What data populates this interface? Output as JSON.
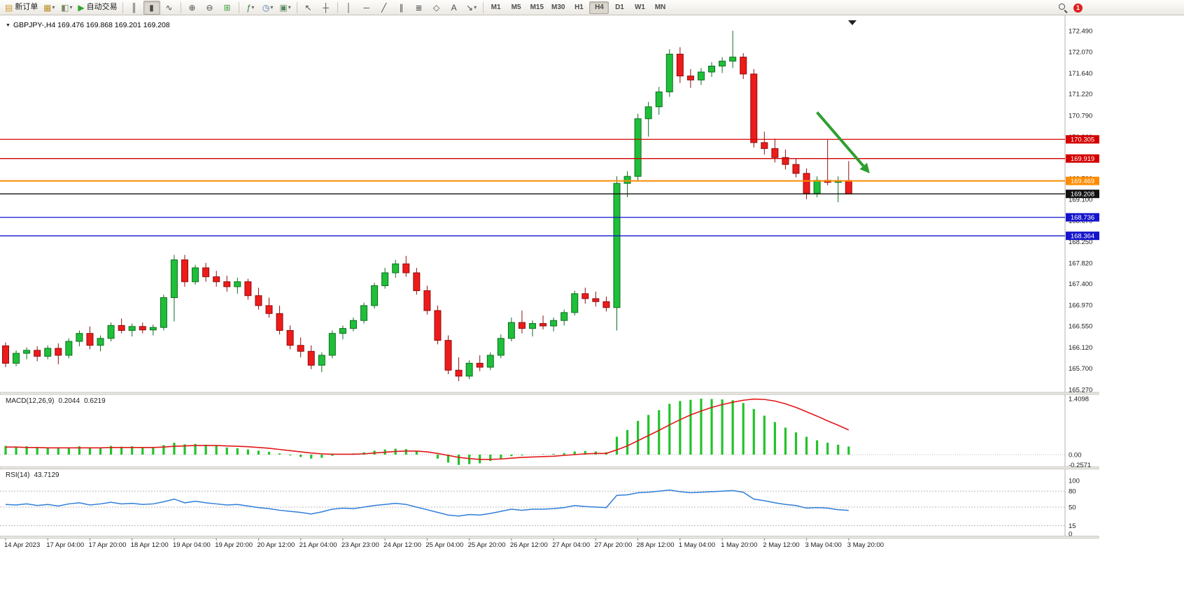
{
  "toolbar": {
    "new_order_label": "新订单",
    "autotrading_label": "自动交易",
    "icons": {
      "new_order": "▤",
      "chart_window": "▦",
      "profiles": "◧",
      "autotrading_play": "▶",
      "bar_chart": "║",
      "candlesticks": "▮",
      "line_chart": "∿",
      "zoom_in": "⊕",
      "zoom_out": "⊖",
      "tile_windows": "⊞",
      "indicators": "ƒ",
      "periods": "◷",
      "templates": "▣",
      "cursor": "↖",
      "crosshair": "┼",
      "vertical_line": "│",
      "horizontal_line": "─",
      "trendline": "╱",
      "channel": "∥",
      "fibonacci": "≣",
      "shapes": "◇",
      "text_tool": "A",
      "arrows_tool": "↘",
      "dropdown": "▾"
    },
    "timeframes": [
      "M1",
      "M5",
      "M15",
      "M30",
      "H1",
      "H4",
      "D1",
      "W1",
      "MN"
    ],
    "active_timeframe": "H4",
    "notification_count": "1"
  },
  "chart": {
    "symbol_info": "GBPJPY-,H4 169.476 169.868 169.201 169.208",
    "menu_icon": "▼",
    "price_axis": [
      "172.490",
      "172.070",
      "171.640",
      "171.220",
      "170.790",
      "170.360",
      "169.940",
      "169.520",
      "169.100",
      "168.670",
      "168.250",
      "167.820",
      "167.400",
      "166.970",
      "166.550",
      "166.120",
      "165.700",
      "165.270"
    ],
    "levels": [
      {
        "price": 170.305,
        "label": "170.305",
        "color": "#d40000",
        "type": "resistance"
      },
      {
        "price": 169.919,
        "label": "169.919",
        "color": "#d40000",
        "type": "resistance"
      },
      {
        "price": 169.469,
        "label": "169.469",
        "color": "#ff8c00",
        "type": "pivot"
      },
      {
        "price": 169.208,
        "label": "169.208",
        "color": "#111111",
        "type": "bid"
      },
      {
        "price": 168.736,
        "label": "168.736",
        "color": "#1414cc",
        "type": "support"
      },
      {
        "price": 168.364,
        "label": "168.364",
        "color": "#1414cc",
        "type": "support"
      }
    ],
    "colors": {
      "up": "#1fbf3a",
      "up_edge": "#0e6e1e",
      "down": "#ee1b1b",
      "down_edge": "#8f0d0d"
    },
    "candles": [
      [
        166.15,
        166.22,
        165.72,
        165.8
      ],
      [
        165.8,
        166.06,
        165.74,
        166.0
      ],
      [
        166.0,
        166.12,
        165.88,
        166.06
      ],
      [
        166.06,
        166.14,
        165.84,
        165.94
      ],
      [
        165.94,
        166.16,
        165.88,
        166.1
      ],
      [
        166.1,
        166.2,
        165.78,
        165.96
      ],
      [
        165.96,
        166.3,
        165.9,
        166.24
      ],
      [
        166.24,
        166.46,
        166.14,
        166.4
      ],
      [
        166.4,
        166.54,
        166.08,
        166.16
      ],
      [
        166.16,
        166.36,
        166.04,
        166.3
      ],
      [
        166.3,
        166.62,
        166.24,
        166.56
      ],
      [
        166.56,
        166.7,
        166.4,
        166.46
      ],
      [
        166.46,
        166.6,
        166.34,
        166.54
      ],
      [
        166.54,
        166.62,
        166.4,
        166.47
      ],
      [
        166.47,
        166.58,
        166.36,
        166.52
      ],
      [
        166.52,
        167.18,
        166.46,
        167.12
      ],
      [
        167.12,
        167.98,
        166.64,
        167.88
      ],
      [
        167.88,
        167.98,
        167.34,
        167.44
      ],
      [
        167.44,
        167.78,
        167.38,
        167.72
      ],
      [
        167.72,
        167.82,
        167.44,
        167.54
      ],
      [
        167.54,
        167.66,
        167.34,
        167.44
      ],
      [
        167.44,
        167.56,
        167.24,
        167.34
      ],
      [
        167.34,
        167.52,
        167.2,
        167.44
      ],
      [
        167.44,
        167.5,
        167.08,
        167.16
      ],
      [
        167.16,
        167.32,
        166.88,
        166.96
      ],
      [
        166.96,
        167.12,
        166.72,
        166.8
      ],
      [
        166.8,
        166.96,
        166.38,
        166.46
      ],
      [
        166.46,
        166.56,
        166.08,
        166.16
      ],
      [
        166.16,
        166.32,
        165.92,
        166.04
      ],
      [
        166.04,
        166.16,
        165.68,
        165.76
      ],
      [
        165.76,
        166.02,
        165.62,
        165.96
      ],
      [
        165.96,
        166.46,
        165.9,
        166.4
      ],
      [
        166.4,
        166.56,
        166.28,
        166.5
      ],
      [
        166.5,
        166.72,
        166.44,
        166.66
      ],
      [
        166.66,
        167.02,
        166.6,
        166.96
      ],
      [
        166.96,
        167.42,
        166.9,
        167.36
      ],
      [
        167.36,
        167.72,
        167.3,
        167.62
      ],
      [
        167.62,
        167.88,
        167.52,
        167.8
      ],
      [
        167.8,
        167.96,
        167.54,
        167.62
      ],
      [
        167.62,
        167.72,
        167.18,
        167.26
      ],
      [
        167.26,
        167.36,
        166.78,
        166.86
      ],
      [
        166.86,
        166.96,
        166.18,
        166.26
      ],
      [
        166.26,
        166.36,
        165.58,
        165.66
      ],
      [
        165.66,
        165.92,
        165.44,
        165.54
      ],
      [
        165.54,
        165.86,
        165.48,
        165.8
      ],
      [
        165.8,
        165.96,
        165.64,
        165.72
      ],
      [
        165.72,
        166.02,
        165.66,
        165.96
      ],
      [
        165.96,
        166.38,
        165.9,
        166.3
      ],
      [
        166.3,
        166.72,
        166.24,
        166.62
      ],
      [
        166.62,
        166.86,
        166.4,
        166.5
      ],
      [
        166.5,
        166.66,
        166.34,
        166.6
      ],
      [
        166.6,
        166.76,
        166.48,
        166.55
      ],
      [
        166.55,
        166.72,
        166.44,
        166.66
      ],
      [
        166.66,
        166.88,
        166.56,
        166.82
      ],
      [
        166.82,
        167.26,
        166.76,
        167.2
      ],
      [
        167.2,
        167.32,
        167.0,
        167.1
      ],
      [
        167.1,
        167.24,
        166.94,
        167.04
      ],
      [
        167.04,
        167.14,
        166.84,
        166.92
      ],
      [
        166.92,
        169.56,
        166.46,
        169.42
      ],
      [
        169.42,
        169.66,
        169.14,
        169.56
      ],
      [
        169.56,
        170.82,
        169.46,
        170.72
      ],
      [
        170.72,
        171.06,
        170.36,
        170.96
      ],
      [
        170.96,
        171.36,
        170.8,
        171.26
      ],
      [
        171.26,
        172.12,
        171.16,
        172.02
      ],
      [
        172.02,
        172.16,
        171.44,
        171.58
      ],
      [
        171.58,
        171.72,
        171.34,
        171.5
      ],
      [
        171.5,
        171.74,
        171.4,
        171.66
      ],
      [
        171.66,
        171.86,
        171.56,
        171.78
      ],
      [
        171.78,
        171.96,
        171.64,
        171.88
      ],
      [
        171.88,
        172.49,
        171.74,
        171.96
      ],
      [
        171.96,
        172.04,
        171.52,
        171.62
      ],
      [
        171.62,
        171.72,
        170.14,
        170.24
      ],
      [
        170.24,
        170.46,
        170.0,
        170.12
      ],
      [
        170.12,
        170.32,
        169.84,
        169.94
      ],
      [
        169.94,
        170.1,
        169.7,
        169.8
      ],
      [
        169.8,
        169.92,
        169.54,
        169.62
      ],
      [
        169.62,
        169.72,
        169.1,
        169.22
      ],
      [
        169.22,
        169.56,
        169.14,
        169.48
      ],
      [
        169.48,
        170.3,
        169.38,
        169.44
      ],
      [
        169.44,
        169.56,
        169.04,
        169.476
      ],
      [
        169.476,
        169.868,
        169.201,
        169.208
      ]
    ],
    "time_labels": [
      "14 Apr 2023",
      "17 Apr 04:00",
      "17 Apr 20:00",
      "18 Apr 12:00",
      "19 Apr 04:00",
      "19 Apr 20:00",
      "20 Apr 12:00",
      "21 Apr 04:00",
      "23 Apr 23:00",
      "24 Apr 12:00",
      "25 Apr 04:00",
      "25 Apr 20:00",
      "26 Apr 12:00",
      "27 Apr 04:00",
      "27 Apr 20:00",
      "28 Apr 12:00",
      "1 May 04:00",
      "1 May 20:00",
      "2 May 12:00",
      "3 May 04:00",
      "3 May 20:00"
    ],
    "label_step": 4,
    "arrow": {
      "from_index": 77,
      "from_price": 170.85,
      "to_index": 82,
      "to_price": 169.62,
      "color": "#2e9e2e"
    }
  },
  "macd": {
    "title": "MACD(12,26,9)",
    "values": [
      "0.2044",
      "0.6219"
    ],
    "axis": [
      {
        "v": 1.4098,
        "t": "1.4098"
      },
      {
        "v": 0,
        "t": "0.00"
      },
      {
        "v": -0.2571,
        "t": "-0.2571"
      }
    ],
    "colors": {
      "histogram": "#22c32a",
      "signal": "#e01818"
    },
    "histogram": [
      0.22,
      0.2,
      0.21,
      0.19,
      0.18,
      0.16,
      0.18,
      0.21,
      0.17,
      0.18,
      0.22,
      0.2,
      0.21,
      0.19,
      0.18,
      0.24,
      0.3,
      0.26,
      0.27,
      0.25,
      0.22,
      0.18,
      0.16,
      0.13,
      0.1,
      0.07,
      0.03,
      -0.02,
      -0.06,
      -0.1,
      -0.08,
      -0.03,
      0.01,
      0.03,
      0.06,
      0.1,
      0.13,
      0.15,
      0.14,
      0.08,
      0.0,
      -0.1,
      -0.2,
      -0.26,
      -0.24,
      -0.22,
      -0.16,
      -0.1,
      -0.04,
      -0.02,
      0.0,
      0.01,
      0.02,
      0.04,
      0.08,
      0.09,
      0.08,
      0.06,
      0.45,
      0.62,
      0.85,
      1.0,
      1.12,
      1.28,
      1.35,
      1.38,
      1.41,
      1.4,
      1.39,
      1.37,
      1.3,
      1.15,
      0.98,
      0.82,
      0.68,
      0.56,
      0.45,
      0.36,
      0.3,
      0.25,
      0.2044
    ],
    "signal": [
      0.19,
      0.19,
      0.18,
      0.18,
      0.17,
      0.17,
      0.17,
      0.17,
      0.17,
      0.17,
      0.18,
      0.18,
      0.18,
      0.18,
      0.18,
      0.19,
      0.21,
      0.22,
      0.23,
      0.23,
      0.23,
      0.22,
      0.21,
      0.2,
      0.18,
      0.16,
      0.13,
      0.1,
      0.07,
      0.04,
      0.02,
      0.01,
      0.01,
      0.01,
      0.02,
      0.04,
      0.06,
      0.08,
      0.09,
      0.09,
      0.07,
      0.03,
      -0.02,
      -0.07,
      -0.1,
      -0.12,
      -0.12,
      -0.11,
      -0.09,
      -0.07,
      -0.06,
      -0.05,
      -0.04,
      -0.02,
      0.0,
      0.02,
      0.03,
      0.03,
      0.12,
      0.22,
      0.35,
      0.48,
      0.61,
      0.75,
      0.88,
      1.0,
      1.1,
      1.19,
      1.26,
      1.32,
      1.37,
      1.4,
      1.39,
      1.35,
      1.28,
      1.19,
      1.08,
      0.97,
      0.85,
      0.74,
      0.6219
    ]
  },
  "rsi": {
    "title": "RSI(14)",
    "value": "43.7129",
    "axis": [
      {
        "v": 100,
        "t": "100"
      },
      {
        "v": 80,
        "t": "80"
      },
      {
        "v": 50,
        "t": "50"
      },
      {
        "v": 15,
        "t": "15"
      },
      {
        "v": 0,
        "t": "0"
      }
    ],
    "levels": [
      80,
      50,
      15
    ],
    "color": "#2f7ed8",
    "values": [
      55,
      54,
      56,
      53,
      55,
      52,
      56,
      58,
      54,
      56,
      59,
      56,
      57,
      55,
      56,
      60,
      65,
      58,
      61,
      58,
      56,
      54,
      55,
      52,
      49,
      47,
      44,
      42,
      40,
      37,
      41,
      46,
      48,
      47,
      50,
      53,
      55,
      57,
      55,
      50,
      45,
      40,
      35,
      33,
      36,
      35,
      38,
      42,
      46,
      44,
      46,
      46,
      47,
      49,
      53,
      51,
      50,
      49,
      72,
      73,
      77,
      78,
      80,
      82,
      79,
      77,
      78,
      79,
      80,
      81,
      78,
      65,
      62,
      58,
      55,
      53,
      48,
      49,
      48,
      45,
      43.71
    ]
  }
}
